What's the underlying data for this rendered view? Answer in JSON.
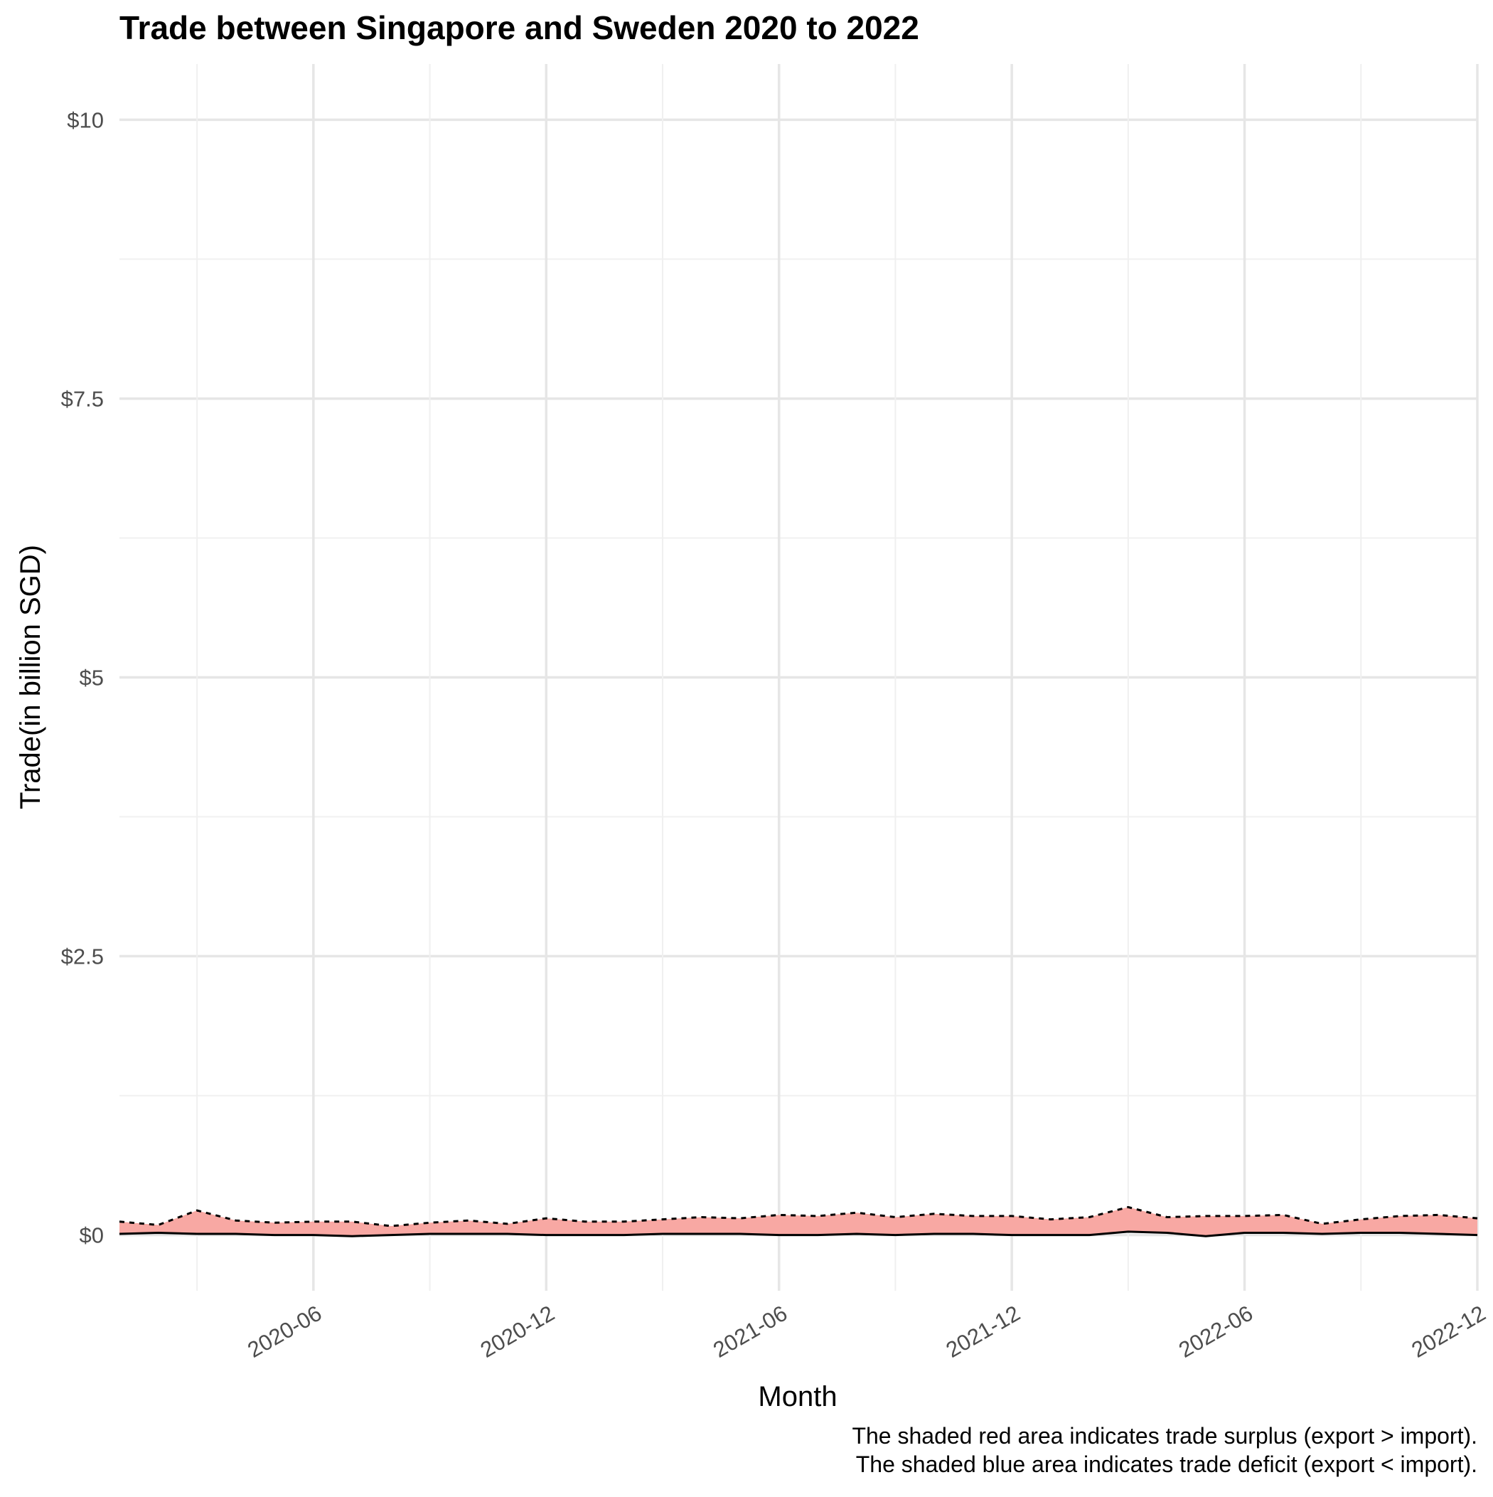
{
  "chart_data": {
    "type": "area",
    "title": "Trade between Singapore and Sweden  2020 to 2022",
    "xlabel": "Month",
    "ylabel": "Trade(in billion SGD)",
    "caption": [
      "The shaded red area indicates trade surplus (export > import).",
      "The shaded blue area indicates trade deficit (export < import)."
    ],
    "x_tick_labels": [
      "2020-06",
      "2020-12",
      "2021-06",
      "2021-12",
      "2022-06",
      "2022-12"
    ],
    "x_ticks": [
      "2020-06",
      "2020-12",
      "2021-06",
      "2021-12",
      "2022-06",
      "2022-12"
    ],
    "xlim": [
      "2020-01",
      "2022-12"
    ],
    "y_tick_labels": [
      "$0",
      "$2.5",
      "$5",
      "$7.5",
      "$10"
    ],
    "y_ticks": [
      0,
      2.5,
      5,
      7.5,
      10
    ],
    "ylim": [
      -0.5,
      10.5
    ],
    "grid": true,
    "legend": "none",
    "colors": {
      "surplus": "#F8A8A3",
      "deficit": "#A3B8F8",
      "export_line": "#000000",
      "import_line": "#000000"
    },
    "x": [
      "2020-01",
      "2020-02",
      "2020-03",
      "2020-04",
      "2020-05",
      "2020-06",
      "2020-07",
      "2020-08",
      "2020-09",
      "2020-10",
      "2020-11",
      "2020-12",
      "2021-01",
      "2021-02",
      "2021-03",
      "2021-04",
      "2021-05",
      "2021-06",
      "2021-07",
      "2021-08",
      "2021-09",
      "2021-10",
      "2021-11",
      "2021-12",
      "2022-01",
      "2022-02",
      "2022-03",
      "2022-04",
      "2022-05",
      "2022-06",
      "2022-07",
      "2022-08",
      "2022-09",
      "2022-10",
      "2022-11",
      "2022-12"
    ],
    "series": [
      {
        "line": "dashed",
        "values": [
          0.12,
          0.09,
          0.22,
          0.13,
          0.11,
          0.12,
          0.12,
          0.08,
          0.11,
          0.13,
          0.1,
          0.15,
          0.12,
          0.12,
          0.14,
          0.16,
          0.15,
          0.18,
          0.17,
          0.2,
          0.16,
          0.19,
          0.17,
          0.17,
          0.14,
          0.16,
          0.25,
          0.16,
          0.17,
          0.17,
          0.18,
          0.1,
          0.14,
          0.17,
          0.18,
          0.15
        ]
      },
      {
        "line": "solid",
        "values": [
          0.01,
          0.02,
          0.01,
          0.01,
          0.0,
          0.0,
          -0.01,
          0.0,
          0.01,
          0.01,
          0.01,
          0.0,
          0.0,
          0.0,
          0.01,
          0.01,
          0.01,
          0.0,
          0.0,
          0.01,
          0.0,
          0.01,
          0.01,
          0.0,
          0.0,
          0.0,
          0.03,
          0.02,
          -0.01,
          0.02,
          0.02,
          0.01,
          0.02,
          0.02,
          0.01,
          0.0
        ]
      }
    ]
  }
}
